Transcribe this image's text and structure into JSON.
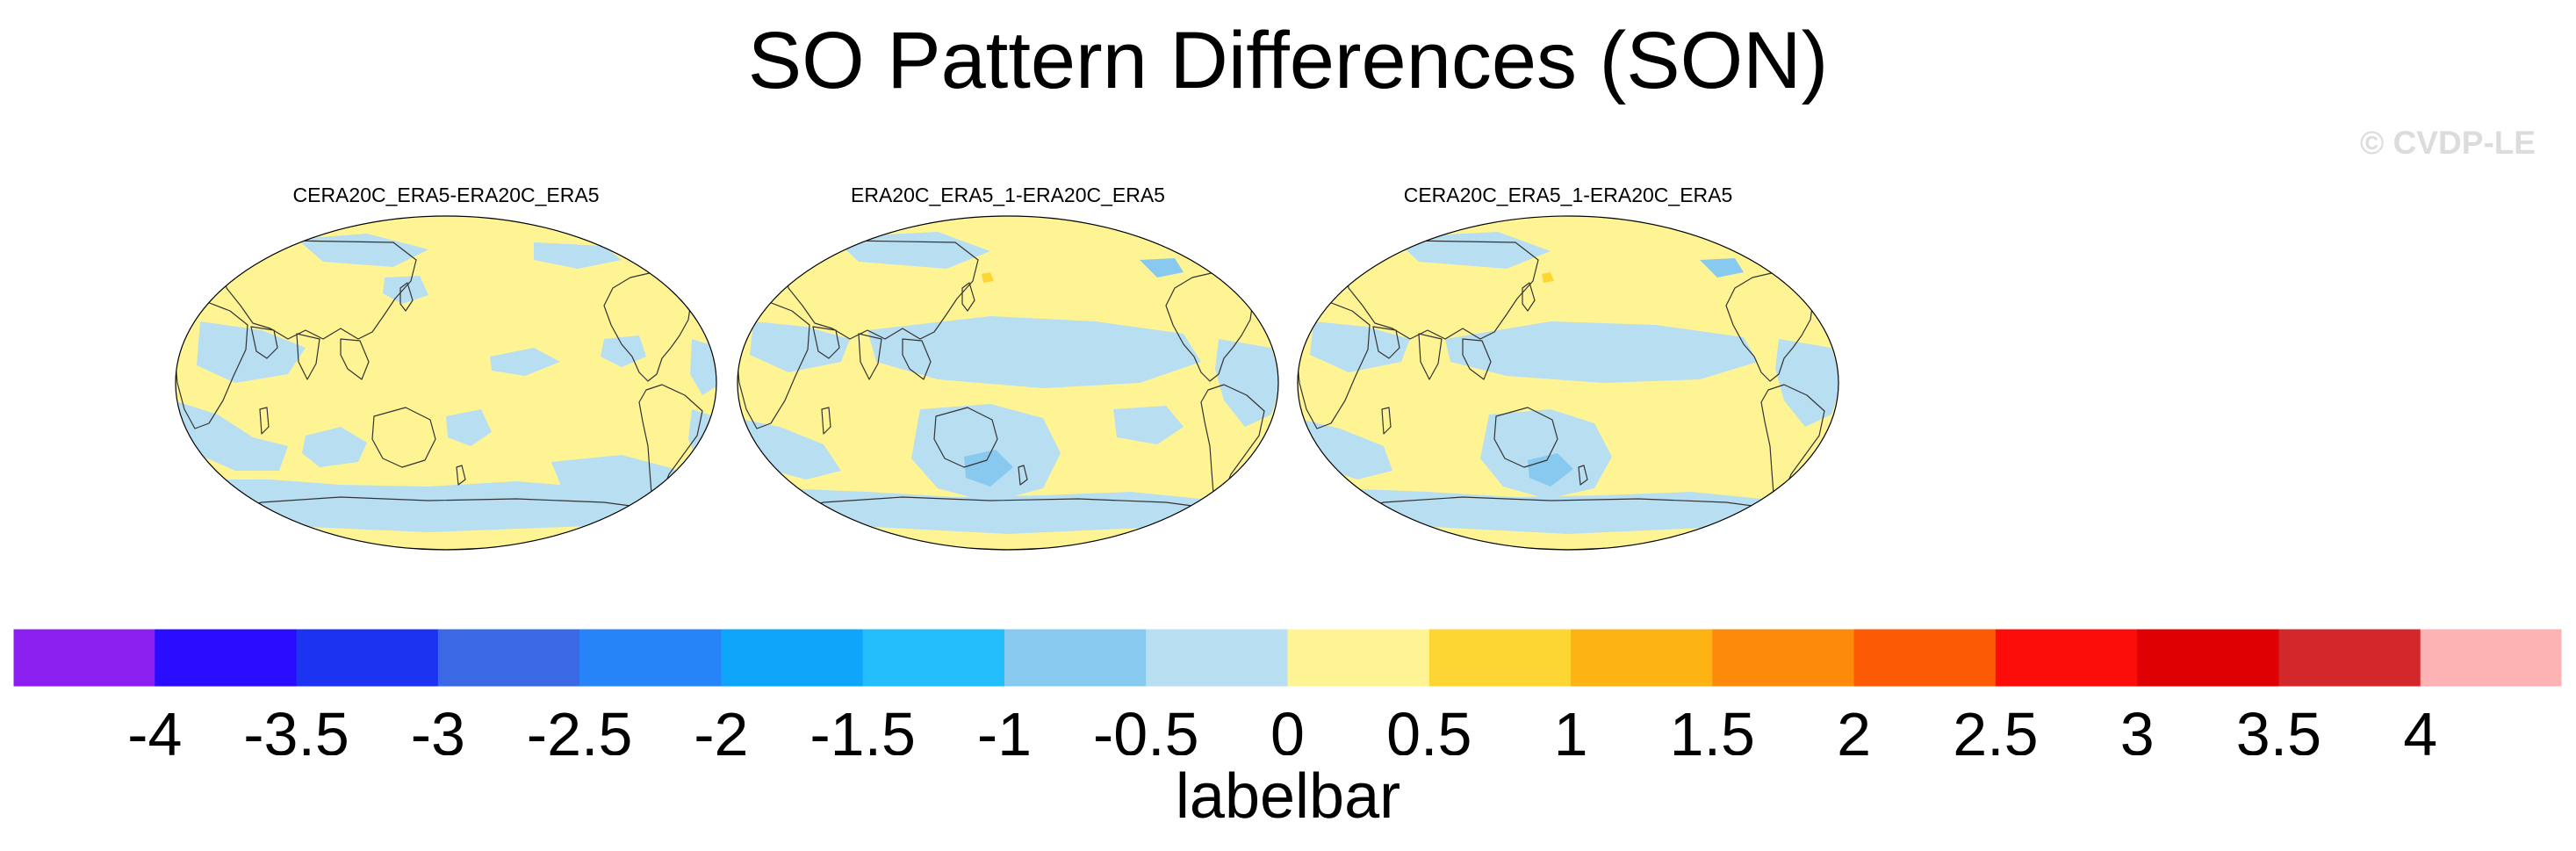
{
  "title": "SO Pattern Differences (SON)",
  "watermark": "© CVDP-LE",
  "panels": [
    {
      "title": "CERA20C_ERA5-ERA20C_ERA5",
      "variant": 0
    },
    {
      "title": "ERA20C_ERA5_1-ERA20C_ERA5",
      "variant": 1
    },
    {
      "title": "CERA20C_ERA5_1-ERA20C_ERA5",
      "variant": 2
    }
  ],
  "labelbar": {
    "title": "labelbar",
    "tick_labels": [
      "-4",
      "-3.5",
      "-3",
      "-2.5",
      "-2",
      "-1.5",
      "-1",
      "-0.5",
      "0",
      "0.5",
      "1",
      "1.5",
      "2",
      "2.5",
      "3",
      "3.5",
      "4"
    ],
    "colors": [
      "#8a1ff0",
      "#2a0cff",
      "#1c33f2",
      "#3b68e4",
      "#2784f8",
      "#0ea5fb",
      "#23bdfb",
      "#88c9ef",
      "#b8def2",
      "#fff494",
      "#fdd633",
      "#fcb313",
      "#fd8a0b",
      "#fd5a06",
      "#fd0d0a",
      "#df0004",
      "#d2282c",
      "#fdb2b3"
    ]
  },
  "map_colors": {
    "positive_small": "#fff494",
    "negative_small": "#b8def2",
    "negative_medium": "#88c9ef",
    "positive_medium": "#fdd633",
    "coastline": "#333333"
  }
}
